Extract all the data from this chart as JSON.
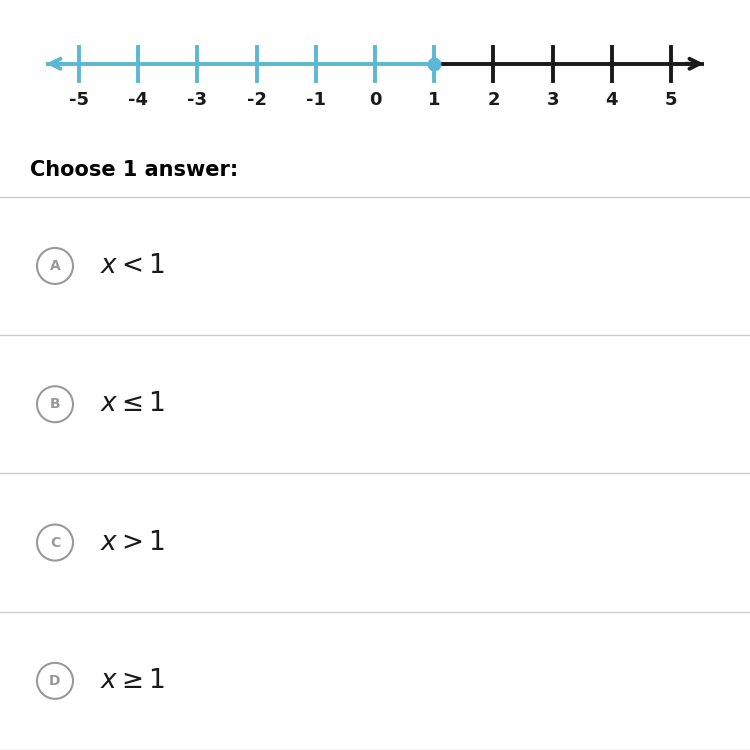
{
  "tick_marks": [
    -5,
    -4,
    -3,
    -2,
    -1,
    0,
    1,
    2,
    3,
    4,
    5
  ],
  "highlight_point": 1,
  "highlight_color": "#5bb8d4",
  "line_color": "#1a1a1a",
  "dot_color": "#5bb8d4",
  "bg_color": "#ffffff",
  "choose_text": "Choose 1 answer:",
  "options": [
    {
      "label": "A",
      "text": "$x < 1$"
    },
    {
      "label": "B",
      "text": "$x \\leq 1$"
    },
    {
      "label": "C",
      "text": "$x > 1$"
    },
    {
      "label": "D",
      "text": "$x \\geq 1$"
    }
  ],
  "divider_color": "#cccccc",
  "circle_color": "#999999",
  "tick_label_fontsize": 13,
  "choose_fontsize": 15,
  "option_fontsize": 19,
  "circle_letter_fontsize": 10
}
